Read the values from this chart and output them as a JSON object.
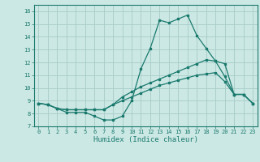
{
  "title": "",
  "xlabel": "Humidex (Indice chaleur)",
  "ylabel": "",
  "xlim": [
    -0.5,
    23.5
  ],
  "ylim": [
    7,
    16.5
  ],
  "yticks": [
    7,
    8,
    9,
    10,
    11,
    12,
    13,
    14,
    15,
    16
  ],
  "xticks": [
    0,
    1,
    2,
    3,
    4,
    5,
    6,
    7,
    8,
    9,
    10,
    11,
    12,
    13,
    14,
    15,
    16,
    17,
    18,
    19,
    20,
    21,
    22,
    23
  ],
  "background_color": "#cce8e4",
  "grid_color": "#aacfcb",
  "line_color": "#1a7a6e",
  "line1_x": [
    0,
    1,
    2,
    3,
    4,
    5,
    6,
    7,
    8,
    9,
    10,
    11,
    12,
    13,
    14,
    15,
    16,
    17,
    18,
    19,
    20,
    21,
    22,
    23
  ],
  "line1_y": [
    8.8,
    8.7,
    8.4,
    8.1,
    8.1,
    8.1,
    7.8,
    7.5,
    7.5,
    7.8,
    9.0,
    11.5,
    13.1,
    15.3,
    15.1,
    15.4,
    15.7,
    14.1,
    13.1,
    12.1,
    10.9,
    9.5,
    9.5,
    8.8
  ],
  "line2_x": [
    0,
    1,
    2,
    3,
    4,
    5,
    6,
    7,
    8,
    9,
    10,
    11,
    12,
    13,
    14,
    15,
    16,
    17,
    18,
    19,
    20,
    21,
    22,
    23
  ],
  "line2_y": [
    8.8,
    8.7,
    8.4,
    8.3,
    8.3,
    8.3,
    8.3,
    8.3,
    8.7,
    9.3,
    9.7,
    10.1,
    10.4,
    10.7,
    11.0,
    11.3,
    11.6,
    11.9,
    12.2,
    12.1,
    11.9,
    9.5,
    9.5,
    8.8
  ],
  "line3_x": [
    0,
    1,
    2,
    3,
    4,
    5,
    6,
    7,
    8,
    9,
    10,
    11,
    12,
    13,
    14,
    15,
    16,
    17,
    18,
    19,
    20,
    21,
    22,
    23
  ],
  "line3_y": [
    8.8,
    8.7,
    8.4,
    8.3,
    8.3,
    8.3,
    8.3,
    8.3,
    8.7,
    9.0,
    9.3,
    9.6,
    9.9,
    10.2,
    10.4,
    10.6,
    10.8,
    11.0,
    11.1,
    11.2,
    10.5,
    9.5,
    9.5,
    8.8
  ],
  "tick_fontsize": 5.0,
  "xlabel_fontsize": 6.5,
  "marker_size": 1.8,
  "line_width": 0.9
}
